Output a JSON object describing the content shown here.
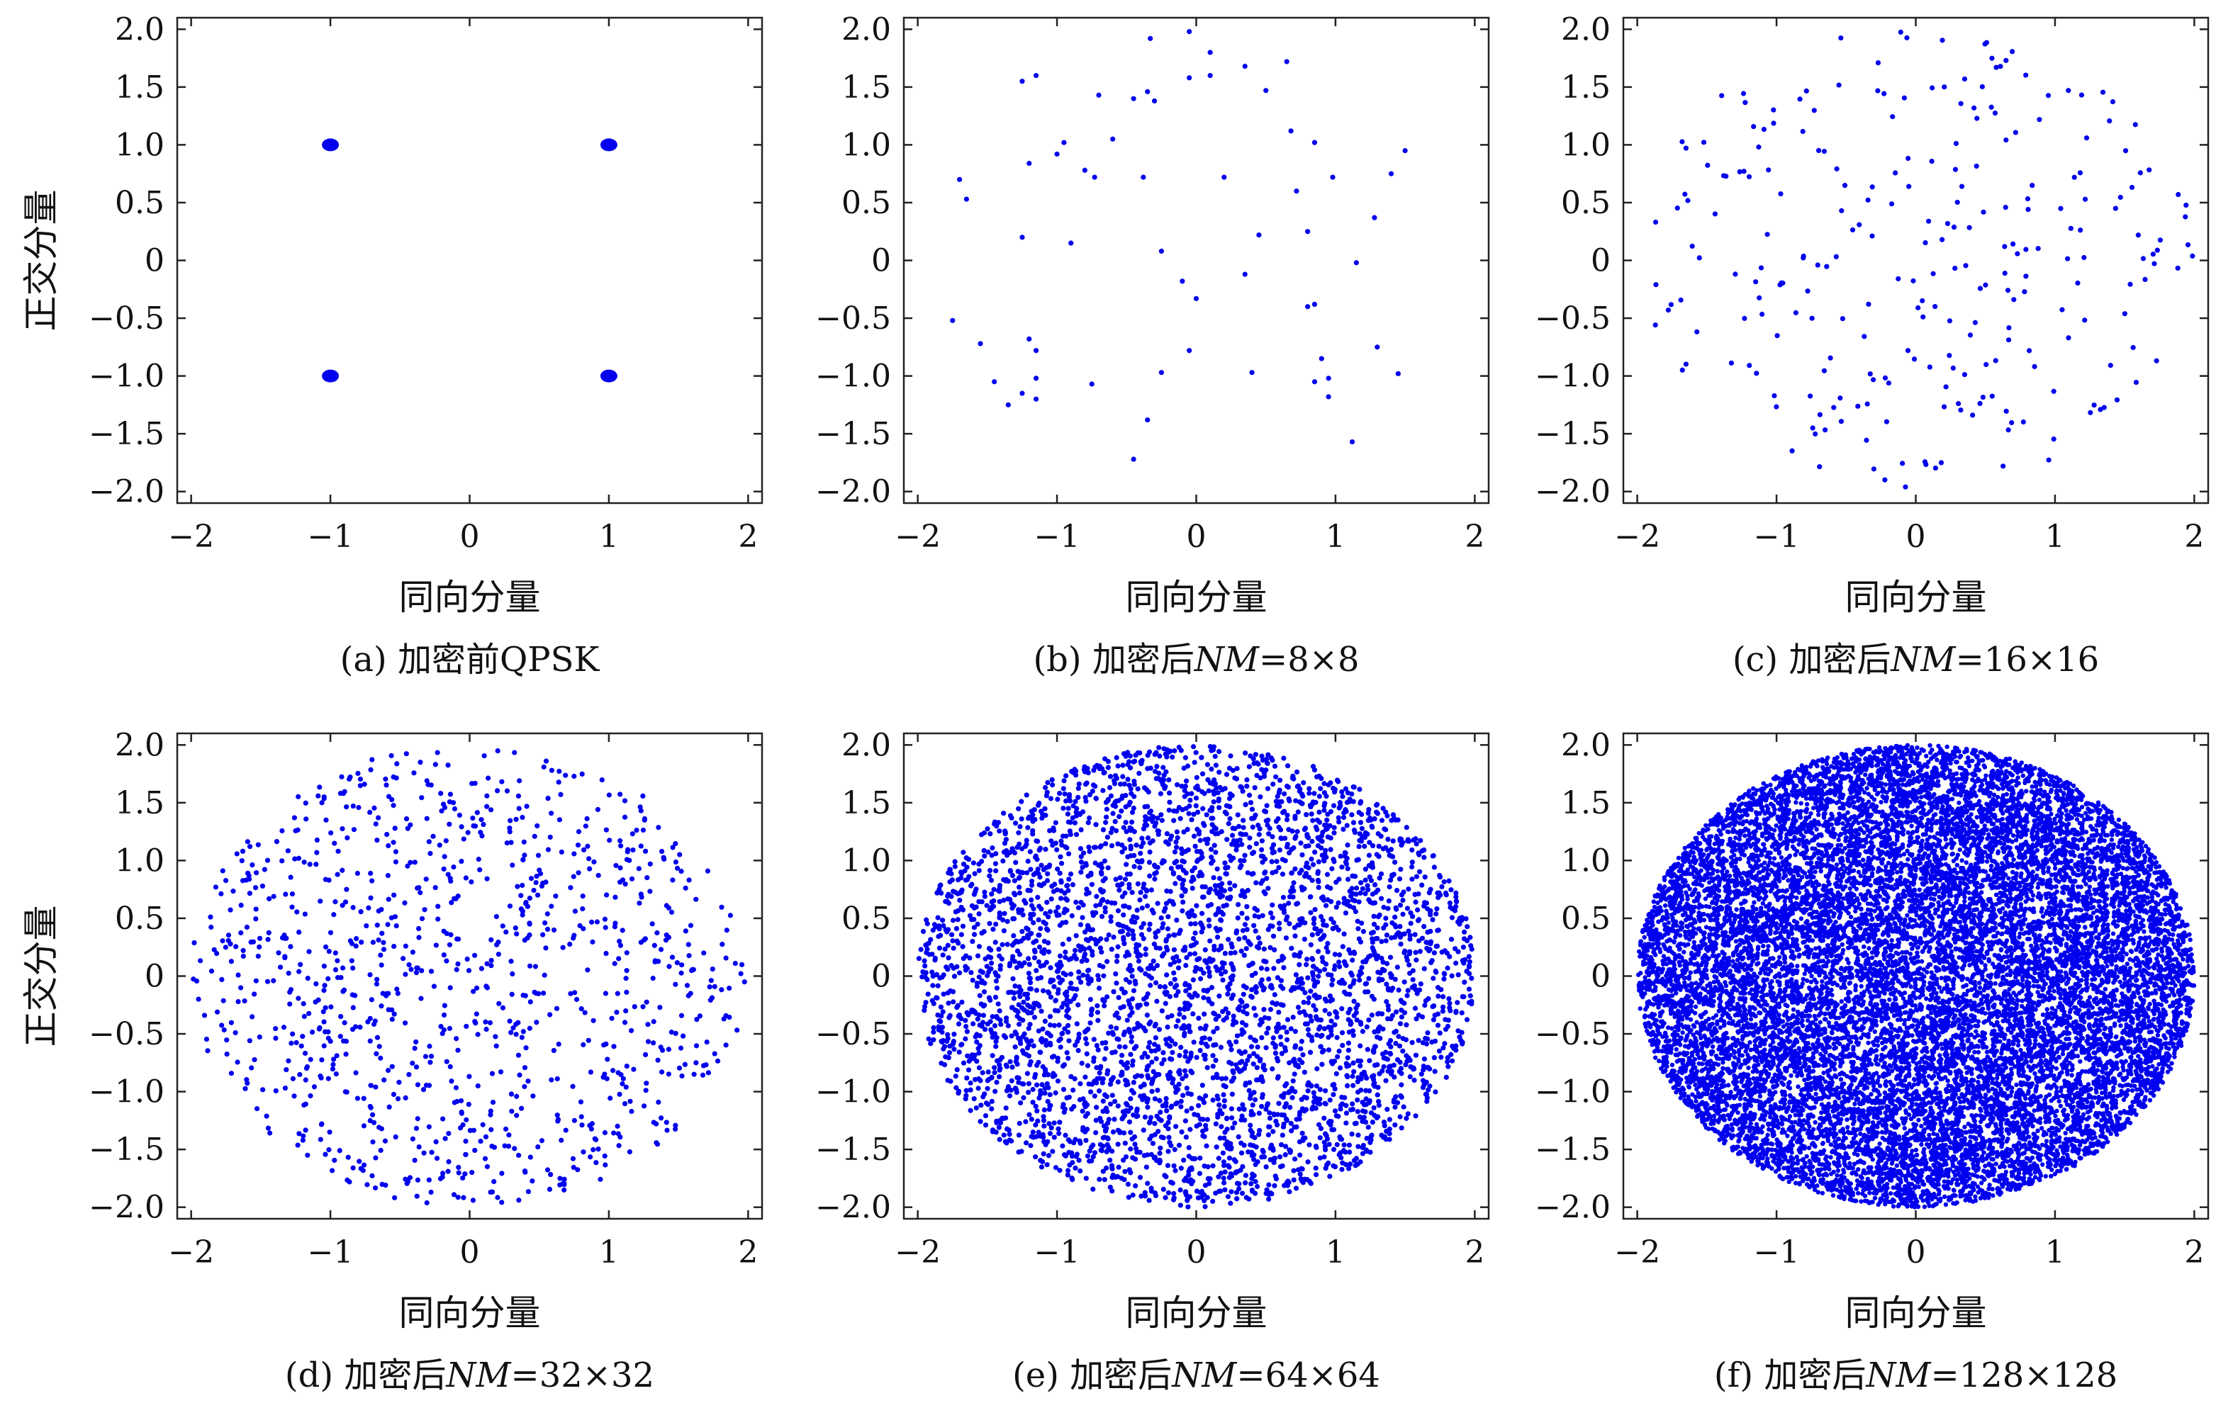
{
  "figure": {
    "point_color": "#0000ee",
    "panels": [
      {
        "id": "a",
        "caption": "(a) 加密前QPSK",
        "xlabel": "同向分量",
        "ylabel": "正交分量",
        "chart_data": {
          "type": "scatter",
          "xlim": [
            -2.1,
            2.1
          ],
          "ylim": [
            -2.1,
            2.1
          ],
          "xticks": [
            -2,
            -1,
            0,
            1,
            2
          ],
          "xtick_labels": [
            "−2",
            "−1",
            "0",
            "1",
            "2"
          ],
          "yticks": [
            2.0,
            1.5,
            1.0,
            0.5,
            0,
            -0.5,
            -1.0,
            -1.5,
            -2.0
          ],
          "ytick_labels": [
            "2.0",
            "1.5",
            "1.0",
            "0.5",
            "0",
            "−0.5",
            "−1.0",
            "−1.5",
            "−2.0"
          ],
          "grid": false,
          "points": [
            [
              -1,
              1
            ],
            [
              1,
              1
            ],
            [
              -1,
              -1
            ],
            [
              1,
              -1
            ]
          ],
          "marker": "large dot (all symbols coincide on the 4 QPSK points)"
        }
      },
      {
        "id": "b",
        "caption_prefix": "(b) 加密后",
        "caption_var": "NM",
        "caption_suffix": "=8×8",
        "xlabel": "同向分量",
        "ylabel": "",
        "chart_data": {
          "type": "scatter",
          "xlim": [
            -2.1,
            2.1
          ],
          "ylim": [
            -2.1,
            2.1
          ],
          "xticks": [
            -2,
            -1,
            0,
            1,
            2
          ],
          "xtick_labels": [
            "−2",
            "−1",
            "0",
            "1",
            "2"
          ],
          "yticks": [
            2.0,
            1.5,
            1.0,
            0.5,
            0,
            -0.5,
            -1.0,
            -1.5,
            -2.0
          ],
          "ytick_labels": [
            "2.0",
            "1.5",
            "1.0",
            "0.5",
            "0",
            "−0.5",
            "−1.0",
            "−1.5",
            "−2.0"
          ],
          "grid": false,
          "n_points": 64,
          "distribution": "uniform within radius 2 disk",
          "points": [
            [
              -0.05,
              1.98
            ],
            [
              -0.33,
              1.92
            ],
            [
              0.35,
              1.68
            ],
            [
              0.1,
              1.8
            ],
            [
              -1.15,
              1.6
            ],
            [
              -1.25,
              1.55
            ],
            [
              -0.05,
              1.58
            ],
            [
              0.65,
              1.72
            ],
            [
              0.1,
              1.6
            ],
            [
              -0.45,
              1.4
            ],
            [
              -0.35,
              1.46
            ],
            [
              -0.3,
              1.38
            ],
            [
              0.5,
              1.47
            ],
            [
              -0.7,
              1.43
            ],
            [
              -0.6,
              1.05
            ],
            [
              -0.95,
              1.02
            ],
            [
              -1.0,
              0.92
            ],
            [
              -0.73,
              0.72
            ],
            [
              -0.38,
              0.72
            ],
            [
              -1.2,
              0.84
            ],
            [
              -0.8,
              0.78
            ],
            [
              0.68,
              1.12
            ],
            [
              0.85,
              1.02
            ],
            [
              1.5,
              0.95
            ],
            [
              0.2,
              0.72
            ],
            [
              0.72,
              0.6
            ],
            [
              0.98,
              0.72
            ],
            [
              1.4,
              0.75
            ],
            [
              -1.7,
              0.7
            ],
            [
              -1.65,
              0.53
            ],
            [
              1.28,
              0.37
            ],
            [
              0.8,
              0.25
            ],
            [
              -1.25,
              0.2
            ],
            [
              -0.9,
              0.15
            ],
            [
              -0.25,
              0.08
            ],
            [
              0.45,
              0.22
            ],
            [
              1.15,
              -0.02
            ],
            [
              -0.1,
              -0.18
            ],
            [
              0.35,
              -0.12
            ],
            [
              0.0,
              -0.33
            ],
            [
              0.85,
              -0.38
            ],
            [
              0.8,
              -0.4
            ],
            [
              -1.75,
              -0.52
            ],
            [
              -1.55,
              -0.72
            ],
            [
              -1.2,
              -0.68
            ],
            [
              -1.15,
              -0.78
            ],
            [
              -0.05,
              -0.78
            ],
            [
              1.3,
              -0.75
            ],
            [
              0.9,
              -0.85
            ],
            [
              -1.15,
              -1.02
            ],
            [
              -0.75,
              -1.07
            ],
            [
              -0.25,
              -0.97
            ],
            [
              0.4,
              -0.97
            ],
            [
              0.85,
              -1.05
            ],
            [
              0.95,
              -1.02
            ],
            [
              1.45,
              -0.98
            ],
            [
              -1.45,
              -1.05
            ],
            [
              -1.35,
              -1.25
            ],
            [
              -1.25,
              -1.15
            ],
            [
              -1.15,
              -1.2
            ],
            [
              0.95,
              -1.18
            ],
            [
              -0.35,
              -1.38
            ],
            [
              1.12,
              -1.57
            ],
            [
              -0.45,
              -1.72
            ]
          ]
        }
      },
      {
        "id": "c",
        "caption_prefix": "(c) 加密后",
        "caption_var": "NM",
        "caption_suffix": "=16×16",
        "xlabel": "同向分量",
        "ylabel": "",
        "chart_data": {
          "type": "scatter",
          "xlim": [
            -2.1,
            2.1
          ],
          "ylim": [
            -2.1,
            2.1
          ],
          "xticks": [
            -2,
            -1,
            0,
            1,
            2
          ],
          "xtick_labels": [
            "−2",
            "−1",
            "0",
            "1",
            "2"
          ],
          "yticks": [
            2.0,
            1.5,
            1.0,
            0.5,
            0,
            -0.5,
            -1.0,
            -1.5,
            -2.0
          ],
          "ytick_labels": [
            "2.0",
            "1.5",
            "1.0",
            "0.5",
            "0",
            "−0.5",
            "−1.0",
            "−1.5",
            "−2.0"
          ],
          "grid": false,
          "n_points": 256,
          "distribution": "uniform within radius 2 disk"
        }
      },
      {
        "id": "d",
        "caption_prefix": "(d) 加密后",
        "caption_var": "NM",
        "caption_suffix": "=32×32",
        "xlabel": "同向分量",
        "ylabel": "正交分量",
        "chart_data": {
          "type": "scatter",
          "xlim": [
            -2.1,
            2.1
          ],
          "ylim": [
            -2.1,
            2.1
          ],
          "xticks": [
            -2,
            -1,
            0,
            1,
            2
          ],
          "xtick_labels": [
            "−2",
            "−1",
            "0",
            "1",
            "2"
          ],
          "yticks": [
            2.0,
            1.5,
            1.0,
            0.5,
            0,
            -0.5,
            -1.0,
            -1.5,
            -2.0
          ],
          "ytick_labels": [
            "2.0",
            "1.5",
            "1.0",
            "0.5",
            "0",
            "−0.5",
            "−1.0",
            "−1.5",
            "−2.0"
          ],
          "grid": false,
          "n_points": 1024,
          "distribution": "uniform within radius 2 disk"
        }
      },
      {
        "id": "e",
        "caption_prefix": "(e) 加密后",
        "caption_var": "NM",
        "caption_suffix": "=64×64",
        "xlabel": "同向分量",
        "ylabel": "",
        "chart_data": {
          "type": "scatter",
          "xlim": [
            -2.1,
            2.1
          ],
          "ylim": [
            -2.1,
            2.1
          ],
          "xticks": [
            -2,
            -1,
            0,
            1,
            2
          ],
          "xtick_labels": [
            "−2",
            "−1",
            "0",
            "1",
            "2"
          ],
          "yticks": [
            2.0,
            1.5,
            1.0,
            0.5,
            0,
            -0.5,
            -1.0,
            -1.5,
            -2.0
          ],
          "ytick_labels": [
            "2.0",
            "1.5",
            "1.0",
            "0.5",
            "0",
            "−0.5",
            "−1.0",
            "−1.5",
            "−2.0"
          ],
          "grid": false,
          "n_points": 4096,
          "distribution": "uniform within radius 2 disk"
        }
      },
      {
        "id": "f",
        "caption_prefix": "(f) 加密后",
        "caption_var": "NM",
        "caption_suffix": "=128×128",
        "xlabel": "同向分量",
        "ylabel": "",
        "chart_data": {
          "type": "scatter",
          "xlim": [
            -2.1,
            2.1
          ],
          "ylim": [
            -2.1,
            2.1
          ],
          "xticks": [
            -2,
            -1,
            0,
            1,
            2
          ],
          "xtick_labels": [
            "−2",
            "−1",
            "0",
            "1",
            "2"
          ],
          "yticks": [
            2.0,
            1.5,
            1.0,
            0.5,
            0,
            -0.5,
            -1.0,
            -1.5,
            -2.0
          ],
          "ytick_labels": [
            "2.0",
            "1.5",
            "1.0",
            "0.5",
            "0",
            "−0.5",
            "−1.0",
            "−1.5",
            "−2.0"
          ],
          "grid": false,
          "n_points": 16384,
          "distribution": "uniform within radius 2 disk"
        }
      }
    ]
  }
}
